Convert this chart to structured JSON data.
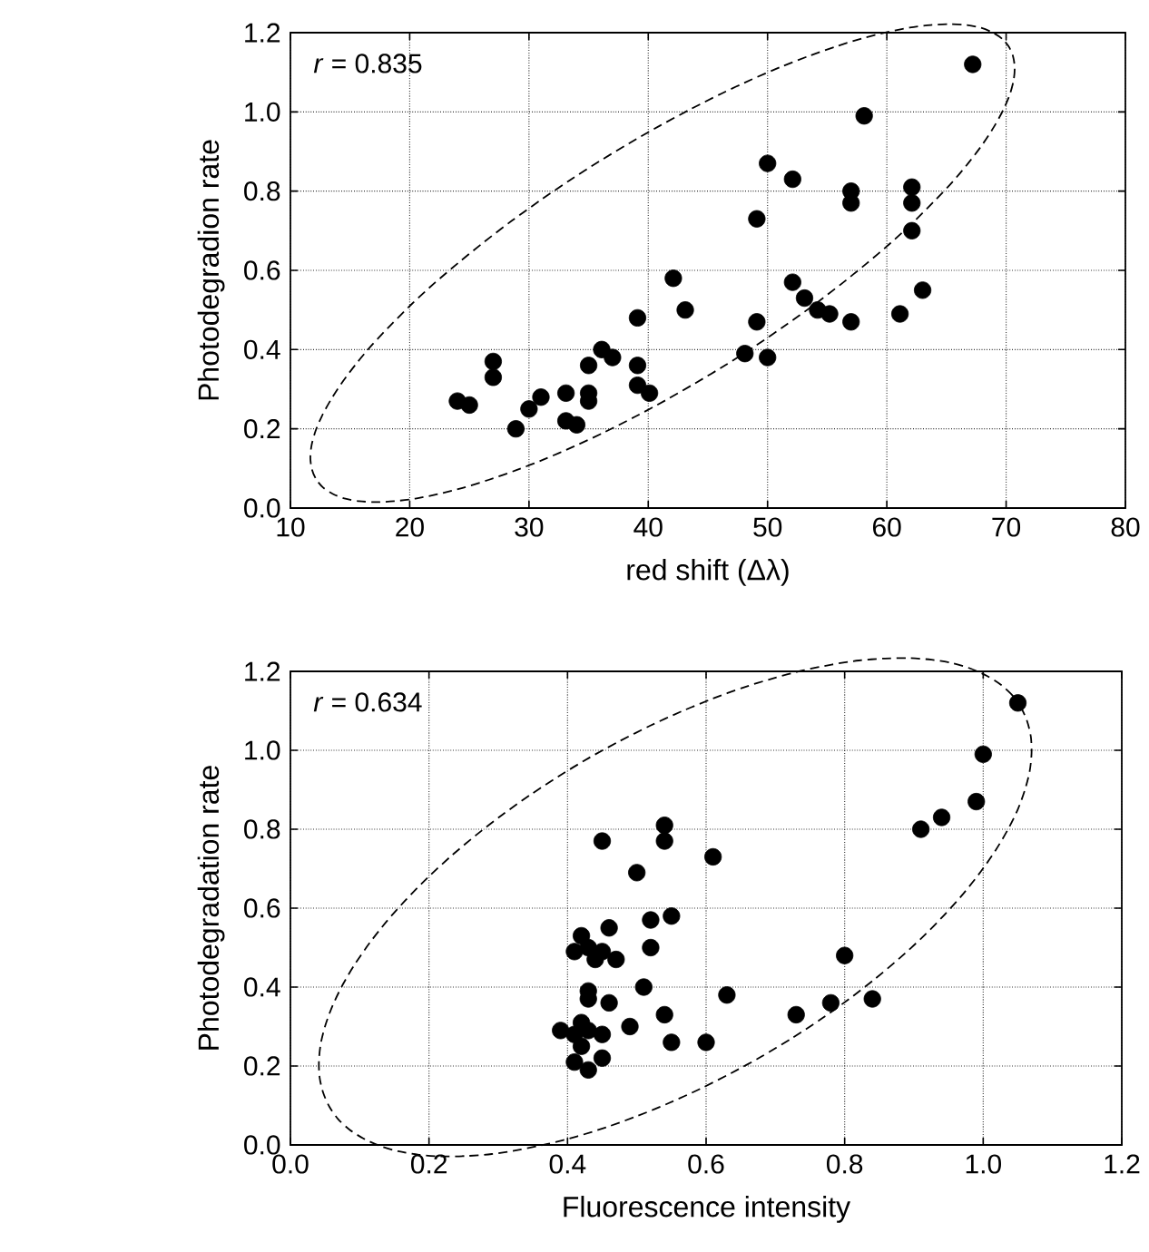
{
  "chart_data": [
    {
      "type": "scatter",
      "xlabel": "red shift (Δλ)",
      "ylabel": "Photodegradion rate",
      "annotations": [
        "*r* = 0.835"
      ],
      "color": "#000000",
      "grid": true,
      "xlim": [
        10,
        80
      ],
      "ylim": [
        0,
        1.2
      ],
      "xticks": [
        10,
        20,
        30,
        40,
        50,
        60,
        70,
        80
      ],
      "yticks": [
        {
          "value": 0,
          "label": "0.0"
        },
        {
          "value": 0.2,
          "label": "0.2"
        },
        {
          "value": 0.4,
          "label": "0.4"
        },
        {
          "value": 0.6,
          "label": "0.6"
        },
        {
          "value": 0.8,
          "label": "0.8"
        },
        {
          "value": 1.0,
          "label": "1.0"
        },
        {
          "value": 1.2,
          "label": "1.2"
        }
      ],
      "x": [
        67.2,
        58.1,
        50.0,
        52.1,
        57.0,
        57.0,
        62.1,
        62.1,
        62.1,
        49.1,
        42.1,
        43.1,
        52.1,
        53.1,
        54.2,
        55.2,
        57.0,
        63.0,
        61.1,
        49.1,
        48.1,
        50.0,
        39.1,
        39.1,
        39.1,
        40.1,
        36.1,
        37.0,
        35.0,
        35.0,
        35.0,
        33.1,
        33.1,
        34.0,
        31.0,
        30.0,
        28.9,
        27.0,
        27.0,
        24.0,
        25.0
      ],
      "values": [
        1.12,
        0.99,
        0.87,
        0.83,
        0.8,
        0.77,
        0.81,
        0.77,
        0.7,
        0.73,
        0.58,
        0.5,
        0.57,
        0.53,
        0.5,
        0.49,
        0.47,
        0.55,
        0.49,
        0.47,
        0.39,
        0.38,
        0.48,
        0.36,
        0.31,
        0.29,
        0.4,
        0.38,
        0.36,
        0.29,
        0.27,
        0.29,
        0.22,
        0.21,
        0.28,
        0.25,
        0.2,
        0.37,
        0.33,
        0.27,
        0.26
      ]
    },
    {
      "type": "scatter",
      "xlabel": "Fluorescence intensity",
      "ylabel": "Photodegradation rate",
      "annotations": [
        "*r* = 0.634"
      ],
      "color": "#000000",
      "grid": true,
      "xlim": [
        0,
        1.2
      ],
      "ylim": [
        0,
        1.2
      ],
      "xticks": [
        {
          "value": 0,
          "label": "0.0"
        },
        {
          "value": 0.2,
          "label": "0.2"
        },
        {
          "value": 0.4,
          "label": "0.4"
        },
        {
          "value": 0.6,
          "label": "0.6"
        },
        {
          "value": 0.8,
          "label": "0.8"
        },
        {
          "value": 1.0,
          "label": "1.0"
        },
        {
          "value": 1.2,
          "label": "1.2"
        }
      ],
      "yticks": [
        {
          "value": 0,
          "label": "0.0"
        },
        {
          "value": 0.2,
          "label": "0.2"
        },
        {
          "value": 0.4,
          "label": "0.4"
        },
        {
          "value": 0.6,
          "label": "0.6"
        },
        {
          "value": 0.8,
          "label": "0.8"
        },
        {
          "value": 1.0,
          "label": "1.0"
        },
        {
          "value": 1.2,
          "label": "1.2"
        }
      ],
      "x": [
        1.05,
        1.0,
        0.99,
        0.94,
        0.91,
        0.54,
        0.54,
        0.45,
        0.61,
        0.5,
        0.55,
        0.52,
        0.46,
        0.52,
        0.42,
        0.41,
        0.43,
        0.44,
        0.45,
        0.47,
        0.8,
        0.51,
        0.43,
        0.43,
        0.46,
        0.63,
        0.78,
        0.84,
        0.73,
        0.54,
        0.49,
        0.55,
        0.6,
        0.39,
        0.41,
        0.42,
        0.43,
        0.45,
        0.42,
        0.41,
        0.43,
        0.45
      ],
      "values": [
        1.12,
        0.99,
        0.87,
        0.83,
        0.8,
        0.81,
        0.77,
        0.77,
        0.73,
        0.69,
        0.58,
        0.57,
        0.55,
        0.5,
        0.53,
        0.49,
        0.5,
        0.47,
        0.49,
        0.47,
        0.48,
        0.4,
        0.39,
        0.37,
        0.36,
        0.38,
        0.36,
        0.37,
        0.33,
        0.33,
        0.3,
        0.26,
        0.26,
        0.29,
        0.28,
        0.31,
        0.29,
        0.28,
        0.25,
        0.21,
        0.19,
        0.22
      ]
    }
  ]
}
